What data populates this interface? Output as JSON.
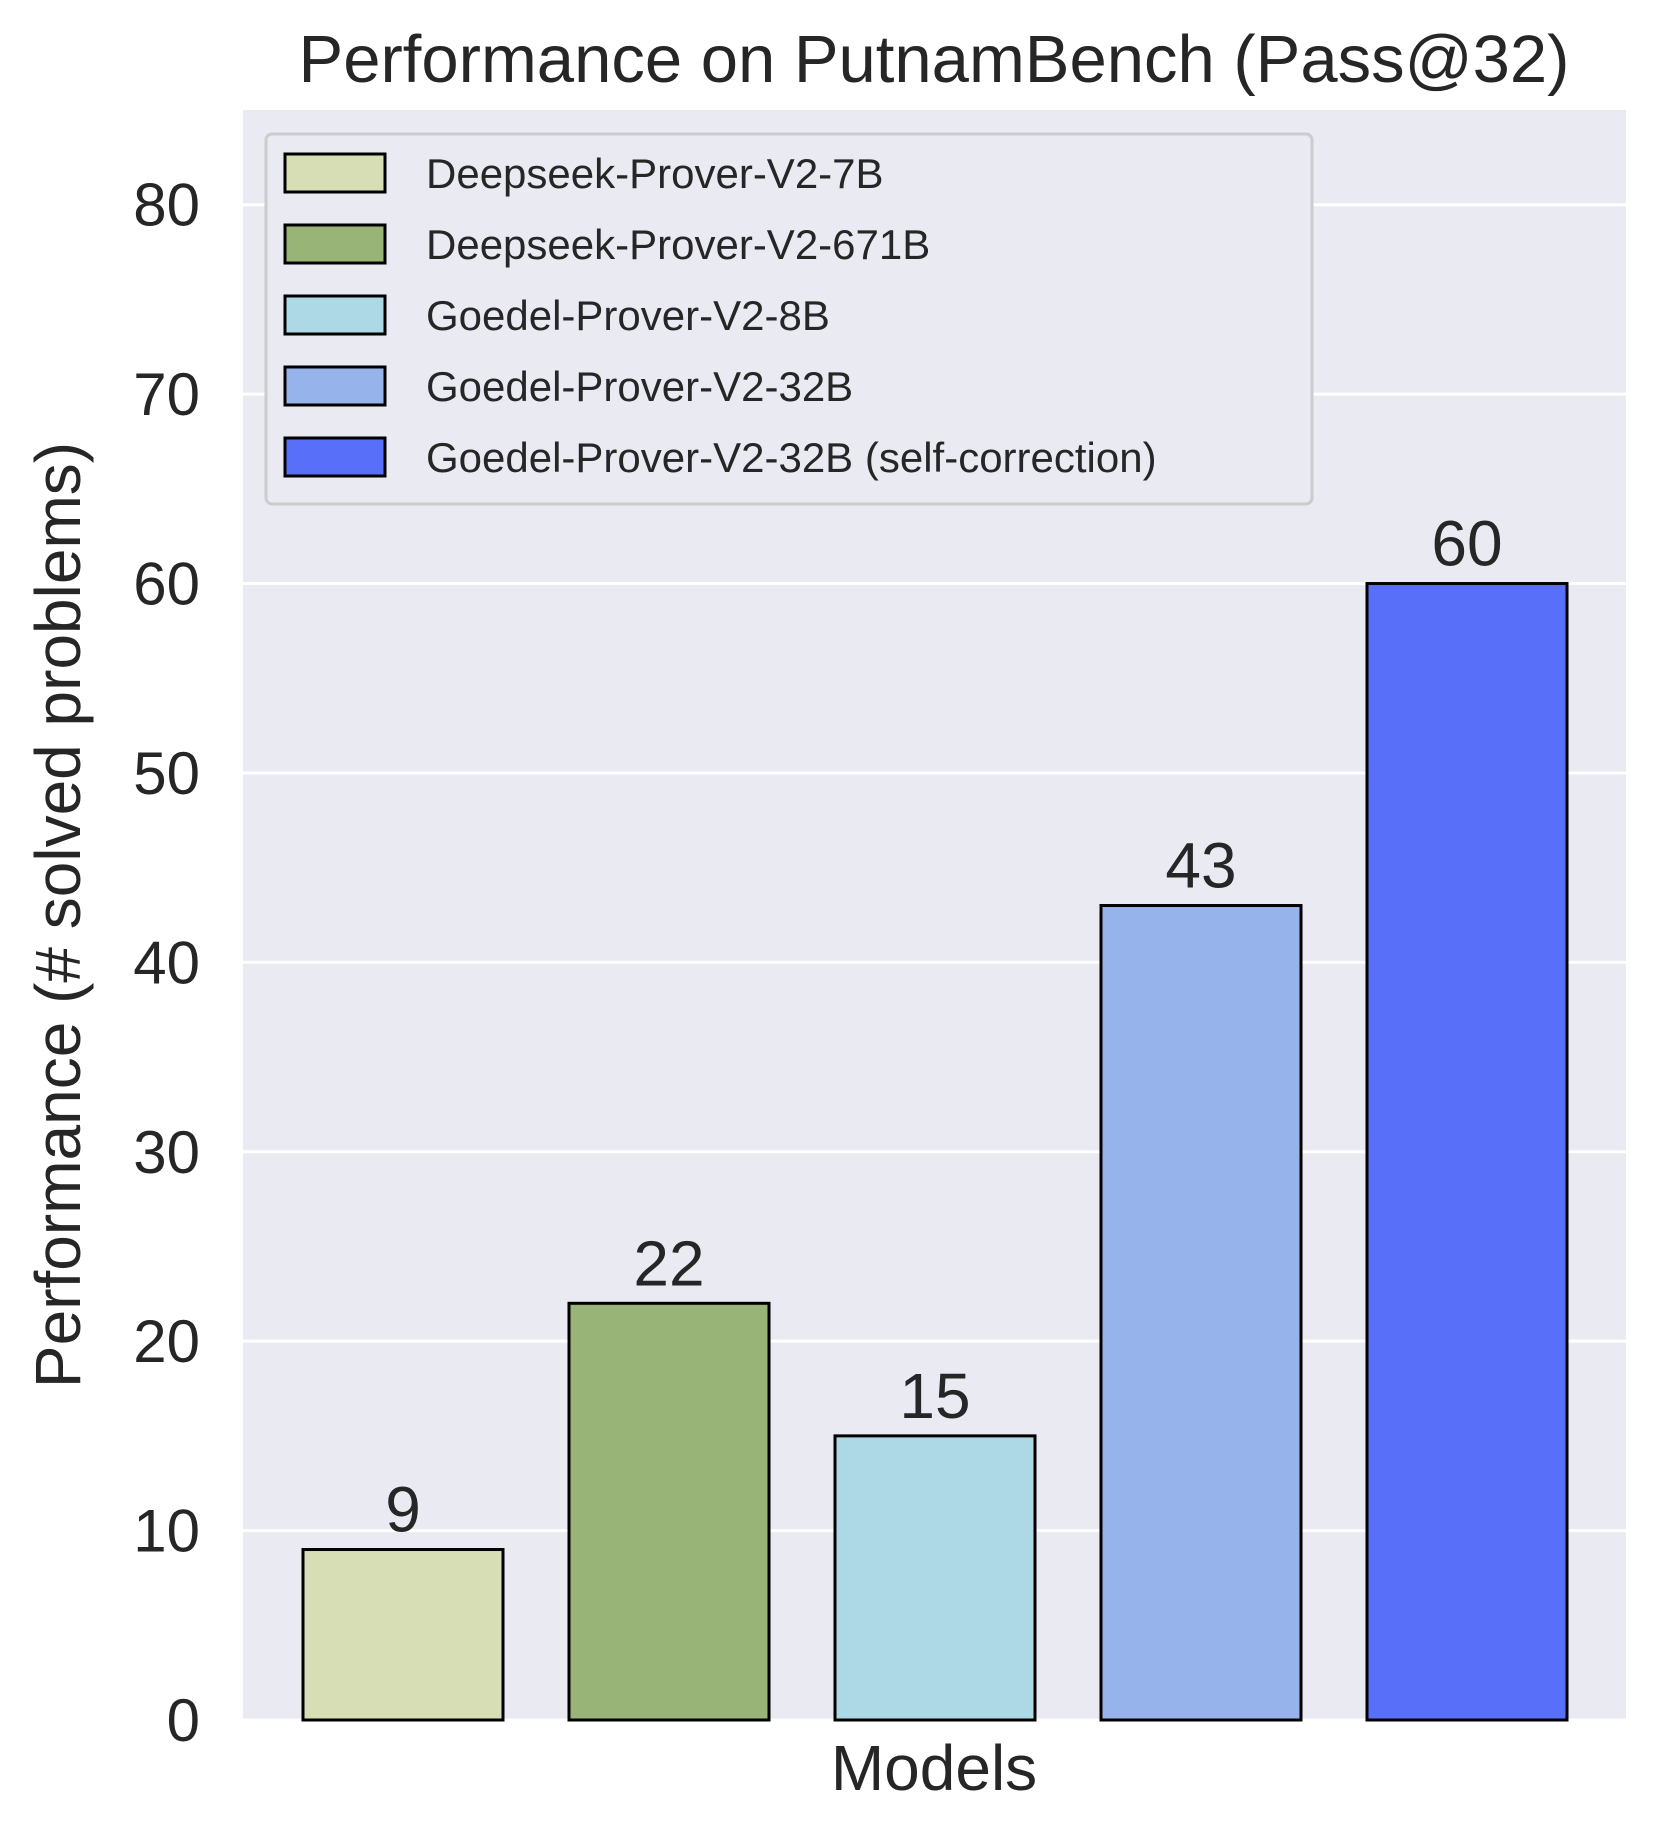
{
  "chart_data": {
    "type": "bar",
    "title": "Performance on PutnamBench (Pass@32)",
    "xlabel": "Models",
    "ylabel": "Performance (# solved problems)",
    "ylim": [
      0,
      85
    ],
    "yticks": [
      0,
      10,
      20,
      30,
      40,
      50,
      60,
      70,
      80
    ],
    "grid": true,
    "legend_position": "top-left",
    "series": [
      {
        "name": "Deepseek-Prover-V2-7B",
        "value": 9,
        "color": "#d7ddb5"
      },
      {
        "name": "Deepseek-Prover-V2-671B",
        "value": 22,
        "color": "#98b577"
      },
      {
        "name": "Goedel-Prover-V2-8B",
        "value": 15,
        "color": "#add8e6"
      },
      {
        "name": "Goedel-Prover-V2-32B",
        "value": 43,
        "color": "#97b3ec"
      },
      {
        "name": "Goedel-Prover-V2-32B (self-correction)",
        "value": 60,
        "color": "#5870f9"
      }
    ],
    "colors": {
      "plot_background": "#eaeaf2",
      "gridline": "#ffffff",
      "text": "#262626",
      "bar_edge": "#000000"
    }
  }
}
